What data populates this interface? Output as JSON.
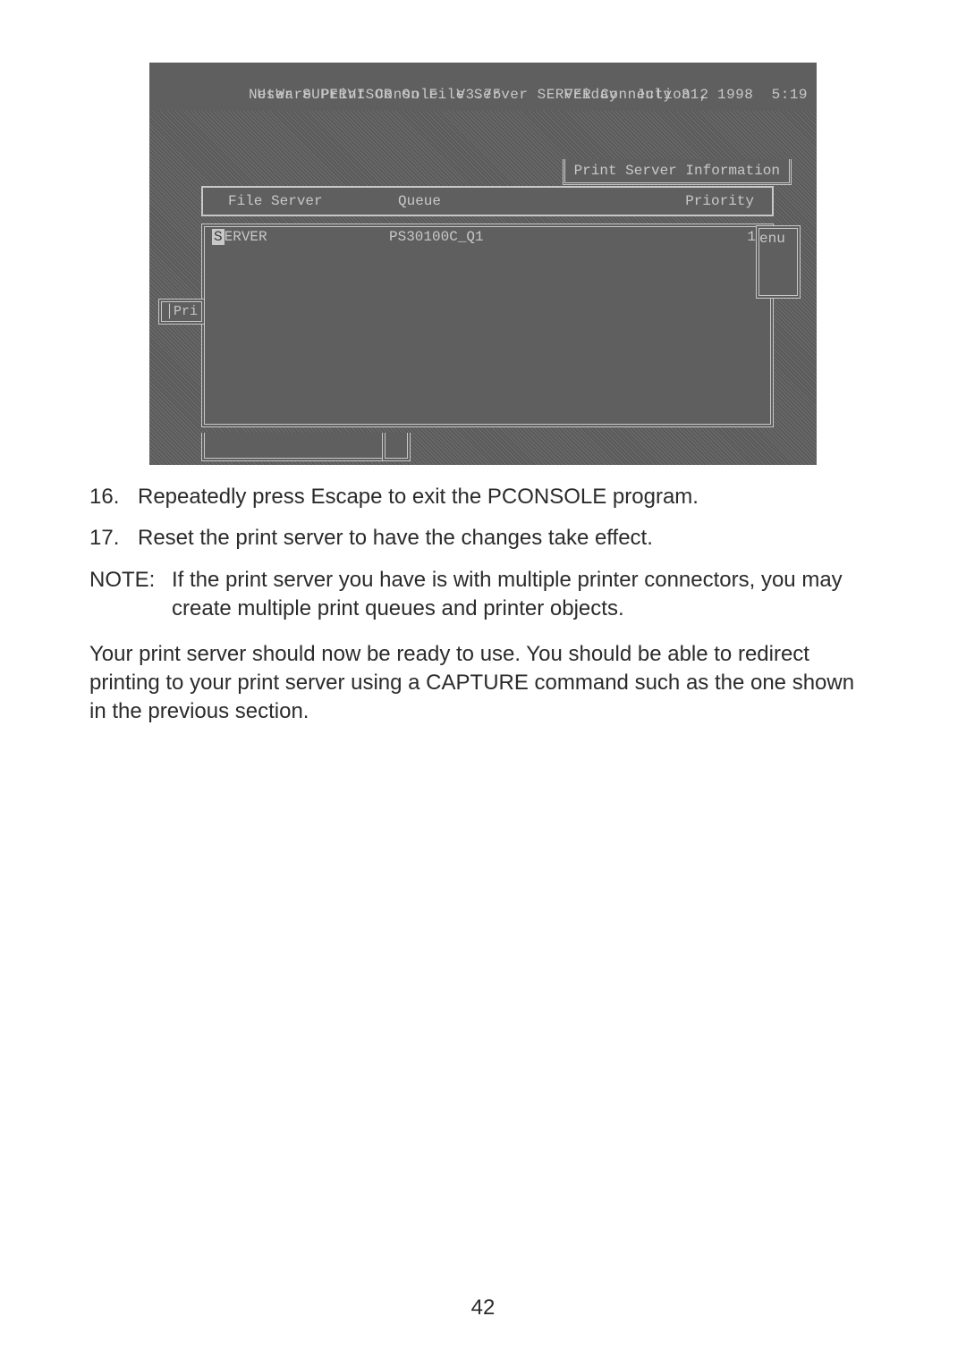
{
  "console": {
    "title_left": "NetWare Print Console  V3.75",
    "title_right": "Friday  July 31, 1998  5:19",
    "subtitle": "User SUPERVISOR On File Server SERVER Connection 2",
    "info_title": "Print Server Information",
    "columns": [
      "File Server",
      "Queue",
      "Priority"
    ],
    "row": {
      "server_hl": "S",
      "server_rest": "ERVER",
      "queue": "PS30100C_Q1",
      "priority": "1"
    },
    "pri_label": "│Pri",
    "enu_label": "enu",
    "colors": {
      "bg": "#5f5f5f",
      "fg": "#c8c8c8",
      "hatch1": "#6e6e6e",
      "hatch2": "#5a5a5a",
      "highlight_bg": "#c8c8c8",
      "highlight_fg": "#3a3a3a"
    }
  },
  "steps": [
    {
      "num": "16.",
      "text": "Repeatedly press Escape to exit the PCONSOLE program."
    },
    {
      "num": "17.",
      "text": "Reset the print server to have the changes take effect."
    }
  ],
  "note_label": "NOTE:",
  "note_text": "If the print server you have is with multiple printer connectors, you may create multiple print queues and printer objects.",
  "closing": "Your print server should now be ready to use.  You should be able to redirect printing to your print server using a CAPTURE command such as the one shown in the previous section.",
  "page_number": "42"
}
